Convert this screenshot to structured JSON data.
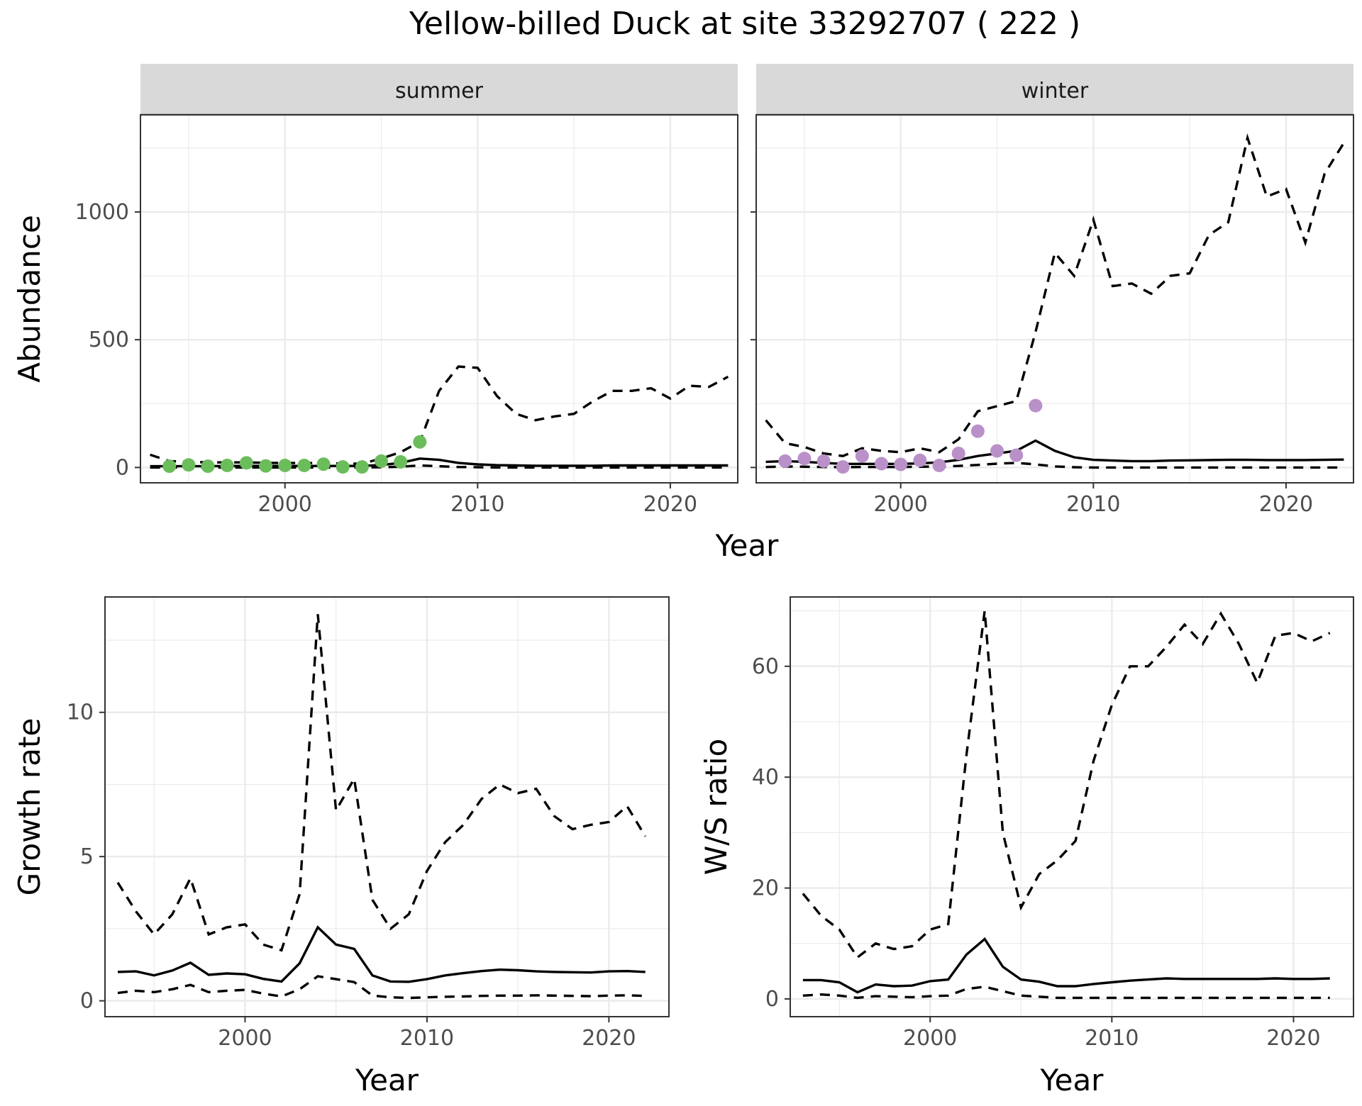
{
  "title": "Yellow-billed Duck at site 33292707 ( 222 )",
  "colors": {
    "summer_points": "#6bbd5b",
    "winter_points": "#b990c8",
    "lines": "#000000",
    "strip_fill": "#d9d9d9"
  },
  "chart_data": [
    {
      "id": "abundance-summer",
      "type": "line",
      "facet": "summer",
      "xlabel": "",
      "ylabel": "Abundance",
      "xlim": [
        1992.5,
        2023.5
      ],
      "ylim": [
        -60,
        1380
      ],
      "xticks": [
        2000,
        2010,
        2020
      ],
      "yticks": [
        0,
        500,
        1000
      ],
      "grid": true,
      "point_color": "#6bbd5b",
      "series": [
        {
          "style": "solid",
          "x": [
            1993,
            1994,
            1995,
            1996,
            1997,
            1998,
            1999,
            2000,
            2001,
            2002,
            2003,
            2004,
            2005,
            2006,
            2007,
            2008,
            2009,
            2010,
            2011,
            2012,
            2013,
            2014,
            2015,
            2016,
            2017,
            2018,
            2019,
            2020,
            2021,
            2022,
            2023
          ],
          "y": [
            5,
            5,
            5,
            5,
            6,
            6,
            6,
            6,
            6,
            6,
            6,
            6,
            10,
            18,
            35,
            30,
            18,
            12,
            9,
            8,
            7,
            7,
            7,
            7,
            8,
            8,
            8,
            8,
            8,
            8,
            8
          ]
        },
        {
          "style": "dashed",
          "x": [
            1993,
            1994,
            1995,
            1996,
            1997,
            1998,
            1999,
            2000,
            2001,
            2002,
            2003,
            2004,
            2005,
            2006,
            2007,
            2008,
            2009,
            2010,
            2011,
            2012,
            2013,
            2014,
            2015,
            2016,
            2017,
            2018,
            2019,
            2020,
            2021,
            2022,
            2023
          ],
          "y": [
            50,
            25,
            22,
            20,
            20,
            20,
            18,
            18,
            17,
            18,
            15,
            15,
            35,
            60,
            100,
            300,
            395,
            390,
            280,
            210,
            185,
            200,
            210,
            260,
            300,
            300,
            310,
            270,
            320,
            315,
            355
          ]
        },
        {
          "style": "dashed",
          "x": [
            1993,
            1994,
            1995,
            1996,
            1997,
            1998,
            1999,
            2000,
            2001,
            2002,
            2003,
            2004,
            2005,
            2006,
            2007,
            2008,
            2009,
            2010,
            2011,
            2012,
            2013,
            2014,
            2015,
            2016,
            2017,
            2018,
            2019,
            2020,
            2021,
            2022,
            2023
          ],
          "y": [
            0,
            0,
            0,
            0,
            0,
            0,
            0,
            0,
            0,
            0,
            0,
            0,
            1,
            3,
            8,
            5,
            2,
            1,
            0,
            0,
            0,
            0,
            0,
            0,
            0,
            0,
            0,
            0,
            0,
            0,
            0
          ]
        },
        {
          "style": "points",
          "x": [
            1994,
            1995,
            1996,
            1997,
            1998,
            1999,
            2000,
            2001,
            2002,
            2003,
            2004,
            2005,
            2006,
            2007
          ],
          "y": [
            5,
            10,
            5,
            8,
            18,
            6,
            8,
            8,
            13,
            2,
            2,
            25,
            22,
            100
          ]
        }
      ]
    },
    {
      "id": "abundance-winter",
      "type": "line",
      "facet": "winter",
      "xlabel": "",
      "ylabel": "",
      "xlim": [
        1992.5,
        2023.5
      ],
      "ylim": [
        -60,
        1380
      ],
      "xticks": [
        2000,
        2010,
        2020
      ],
      "yticks": [
        0,
        500,
        1000
      ],
      "grid": true,
      "point_color": "#b990c8",
      "series": [
        {
          "style": "solid",
          "x": [
            1993,
            1994,
            1995,
            1996,
            1997,
            1998,
            1999,
            2000,
            2001,
            2002,
            2003,
            2004,
            2005,
            2006,
            2007,
            2008,
            2009,
            2010,
            2011,
            2012,
            2013,
            2014,
            2015,
            2016,
            2017,
            2018,
            2019,
            2020,
            2021,
            2022,
            2023
          ],
          "y": [
            22,
            25,
            22,
            18,
            14,
            14,
            14,
            14,
            16,
            20,
            30,
            45,
            55,
            65,
            105,
            65,
            40,
            30,
            27,
            25,
            25,
            27,
            28,
            29,
            30,
            30,
            29,
            29,
            29,
            30,
            31
          ]
        },
        {
          "style": "dashed",
          "x": [
            1993,
            1994,
            1995,
            1996,
            1997,
            1998,
            1999,
            2000,
            2001,
            2002,
            2003,
            2004,
            2005,
            2006,
            2007,
            2008,
            2009,
            2010,
            2011,
            2012,
            2013,
            2014,
            2015,
            2016,
            2017,
            2018,
            2019,
            2020,
            2021,
            2022,
            2023
          ],
          "y": [
            185,
            95,
            80,
            55,
            45,
            75,
            65,
            60,
            75,
            60,
            110,
            220,
            240,
            260,
            530,
            840,
            750,
            970,
            710,
            720,
            680,
            750,
            760,
            910,
            960,
            1290,
            1060,
            1090,
            880,
            1150,
            1270
          ]
        },
        {
          "style": "dashed",
          "x": [
            1993,
            1994,
            1995,
            1996,
            1997,
            1998,
            1999,
            2000,
            2001,
            2002,
            2003,
            2004,
            2005,
            2006,
            2007,
            2008,
            2009,
            2010,
            2011,
            2012,
            2013,
            2014,
            2015,
            2016,
            2017,
            2018,
            2019,
            2020,
            2021,
            2022,
            2023
          ],
          "y": [
            2,
            4,
            3,
            2,
            1,
            2,
            2,
            2,
            3,
            4,
            6,
            10,
            15,
            18,
            12,
            4,
            1,
            0,
            0,
            0,
            0,
            0,
            0,
            0,
            0,
            0,
            0,
            0,
            0,
            0,
            0
          ]
        },
        {
          "style": "points",
          "x": [
            1994,
            1995,
            1996,
            1997,
            1998,
            1999,
            2000,
            2001,
            2002,
            2003,
            2004,
            2005,
            2006,
            2007
          ],
          "y": [
            25,
            35,
            25,
            2,
            45,
            15,
            12,
            28,
            8,
            55,
            142,
            65,
            48,
            242
          ]
        }
      ]
    },
    {
      "id": "growth-rate",
      "type": "line",
      "xlabel": "Year",
      "ylabel": "Growth rate",
      "xlim": [
        1992.3,
        2023.3
      ],
      "ylim": [
        -0.55,
        14.0
      ],
      "xticks": [
        2000,
        2010,
        2020
      ],
      "yticks": [
        0,
        5,
        10
      ],
      "grid": true,
      "series": [
        {
          "style": "solid",
          "x": [
            1993,
            1994,
            1995,
            1996,
            1997,
            1998,
            1999,
            2000,
            2001,
            2002,
            2003,
            2004,
            2005,
            2006,
            2007,
            2008,
            2009,
            2010,
            2011,
            2012,
            2013,
            2014,
            2015,
            2016,
            2017,
            2018,
            2019,
            2020,
            2021,
            2022
          ],
          "y": [
            1.0,
            1.02,
            0.88,
            1.05,
            1.32,
            0.9,
            0.95,
            0.92,
            0.76,
            0.67,
            1.3,
            2.55,
            1.95,
            1.8,
            0.88,
            0.67,
            0.66,
            0.75,
            0.88,
            0.96,
            1.03,
            1.08,
            1.06,
            1.02,
            1.0,
            0.99,
            0.98,
            1.02,
            1.03,
            1.0
          ]
        },
        {
          "style": "dashed",
          "x": [
            1993,
            1994,
            1995,
            1996,
            1997,
            1998,
            1999,
            2000,
            2001,
            2002,
            2003,
            2004,
            2005,
            2006,
            2007,
            2008,
            2009,
            2010,
            2011,
            2012,
            2013,
            2014,
            2015,
            2016,
            2017,
            2018,
            2019,
            2020,
            2021,
            2022
          ],
          "y": [
            4.1,
            3.1,
            2.3,
            3.0,
            4.25,
            2.3,
            2.55,
            2.65,
            1.95,
            1.75,
            3.7,
            13.4,
            6.6,
            7.7,
            3.5,
            2.5,
            3.0,
            4.5,
            5.5,
            6.1,
            7.0,
            7.5,
            7.2,
            7.35,
            6.4,
            5.95,
            6.1,
            6.2,
            6.75,
            5.7
          ]
        },
        {
          "style": "dashed",
          "x": [
            1993,
            1994,
            1995,
            1996,
            1997,
            1998,
            1999,
            2000,
            2001,
            2002,
            2003,
            2004,
            2005,
            2006,
            2007,
            2008,
            2009,
            2010,
            2011,
            2012,
            2013,
            2014,
            2015,
            2016,
            2017,
            2018,
            2019,
            2020,
            2021,
            2022
          ],
          "y": [
            0.27,
            0.35,
            0.3,
            0.4,
            0.55,
            0.3,
            0.35,
            0.38,
            0.25,
            0.15,
            0.4,
            0.85,
            0.75,
            0.65,
            0.18,
            0.12,
            0.1,
            0.12,
            0.14,
            0.15,
            0.17,
            0.18,
            0.18,
            0.19,
            0.18,
            0.17,
            0.16,
            0.18,
            0.19,
            0.17
          ]
        }
      ]
    },
    {
      "id": "ws-ratio",
      "type": "line",
      "xlabel": "Year",
      "ylabel": "W/S ratio",
      "xlim": [
        1992.3,
        2023.3
      ],
      "ylim": [
        -3.2,
        72.5
      ],
      "xticks": [
        2000,
        2010,
        2020
      ],
      "yticks": [
        0,
        20,
        40,
        60
      ],
      "grid": true,
      "series": [
        {
          "style": "solid",
          "x": [
            1993,
            1994,
            1995,
            1996,
            1997,
            1998,
            1999,
            2000,
            2001,
            2002,
            2003,
            2004,
            2005,
            2006,
            2007,
            2008,
            2009,
            2010,
            2011,
            2012,
            2013,
            2014,
            2015,
            2016,
            2017,
            2018,
            2019,
            2020,
            2021,
            2022
          ],
          "y": [
            3.4,
            3.4,
            3.0,
            1.2,
            2.6,
            2.3,
            2.4,
            3.2,
            3.5,
            8.0,
            10.8,
            5.8,
            3.5,
            3.1,
            2.3,
            2.3,
            2.7,
            3.0,
            3.3,
            3.5,
            3.7,
            3.6,
            3.6,
            3.6,
            3.6,
            3.6,
            3.7,
            3.6,
            3.6,
            3.7
          ]
        },
        {
          "style": "dashed",
          "x": [
            1993,
            1994,
            1995,
            1996,
            1997,
            1998,
            1999,
            2000,
            2001,
            2002,
            2003,
            2004,
            2005,
            2006,
            2007,
            2008,
            2009,
            2010,
            2011,
            2012,
            2013,
            2014,
            2015,
            2016,
            2017,
            2018,
            2019,
            2020,
            2021,
            2022
          ],
          "y": [
            19,
            15,
            12.5,
            7.5,
            10,
            9,
            9.5,
            12.5,
            13.5,
            44,
            70,
            30,
            16.5,
            22.5,
            25,
            28.5,
            43,
            53,
            60,
            60,
            63.5,
            67.5,
            64,
            69.5,
            64,
            57,
            65.5,
            66,
            64.5,
            66
          ]
        },
        {
          "style": "dashed",
          "x": [
            1993,
            1994,
            1995,
            1996,
            1997,
            1998,
            1999,
            2000,
            2001,
            2002,
            2003,
            2004,
            2005,
            2006,
            2007,
            2008,
            2009,
            2010,
            2011,
            2012,
            2013,
            2014,
            2015,
            2016,
            2017,
            2018,
            2019,
            2020,
            2021,
            2022
          ],
          "y": [
            0.6,
            0.8,
            0.6,
            0.2,
            0.5,
            0.4,
            0.3,
            0.5,
            0.6,
            1.8,
            2.2,
            1.4,
            0.6,
            0.4,
            0.2,
            0.2,
            0.2,
            0.2,
            0.2,
            0.2,
            0.2,
            0.2,
            0.2,
            0.2,
            0.2,
            0.2,
            0.2,
            0.2,
            0.2,
            0.2
          ]
        }
      ]
    }
  ],
  "strips": {
    "summer": "summer",
    "winter": "winter"
  },
  "shared_xlabel": "Year"
}
